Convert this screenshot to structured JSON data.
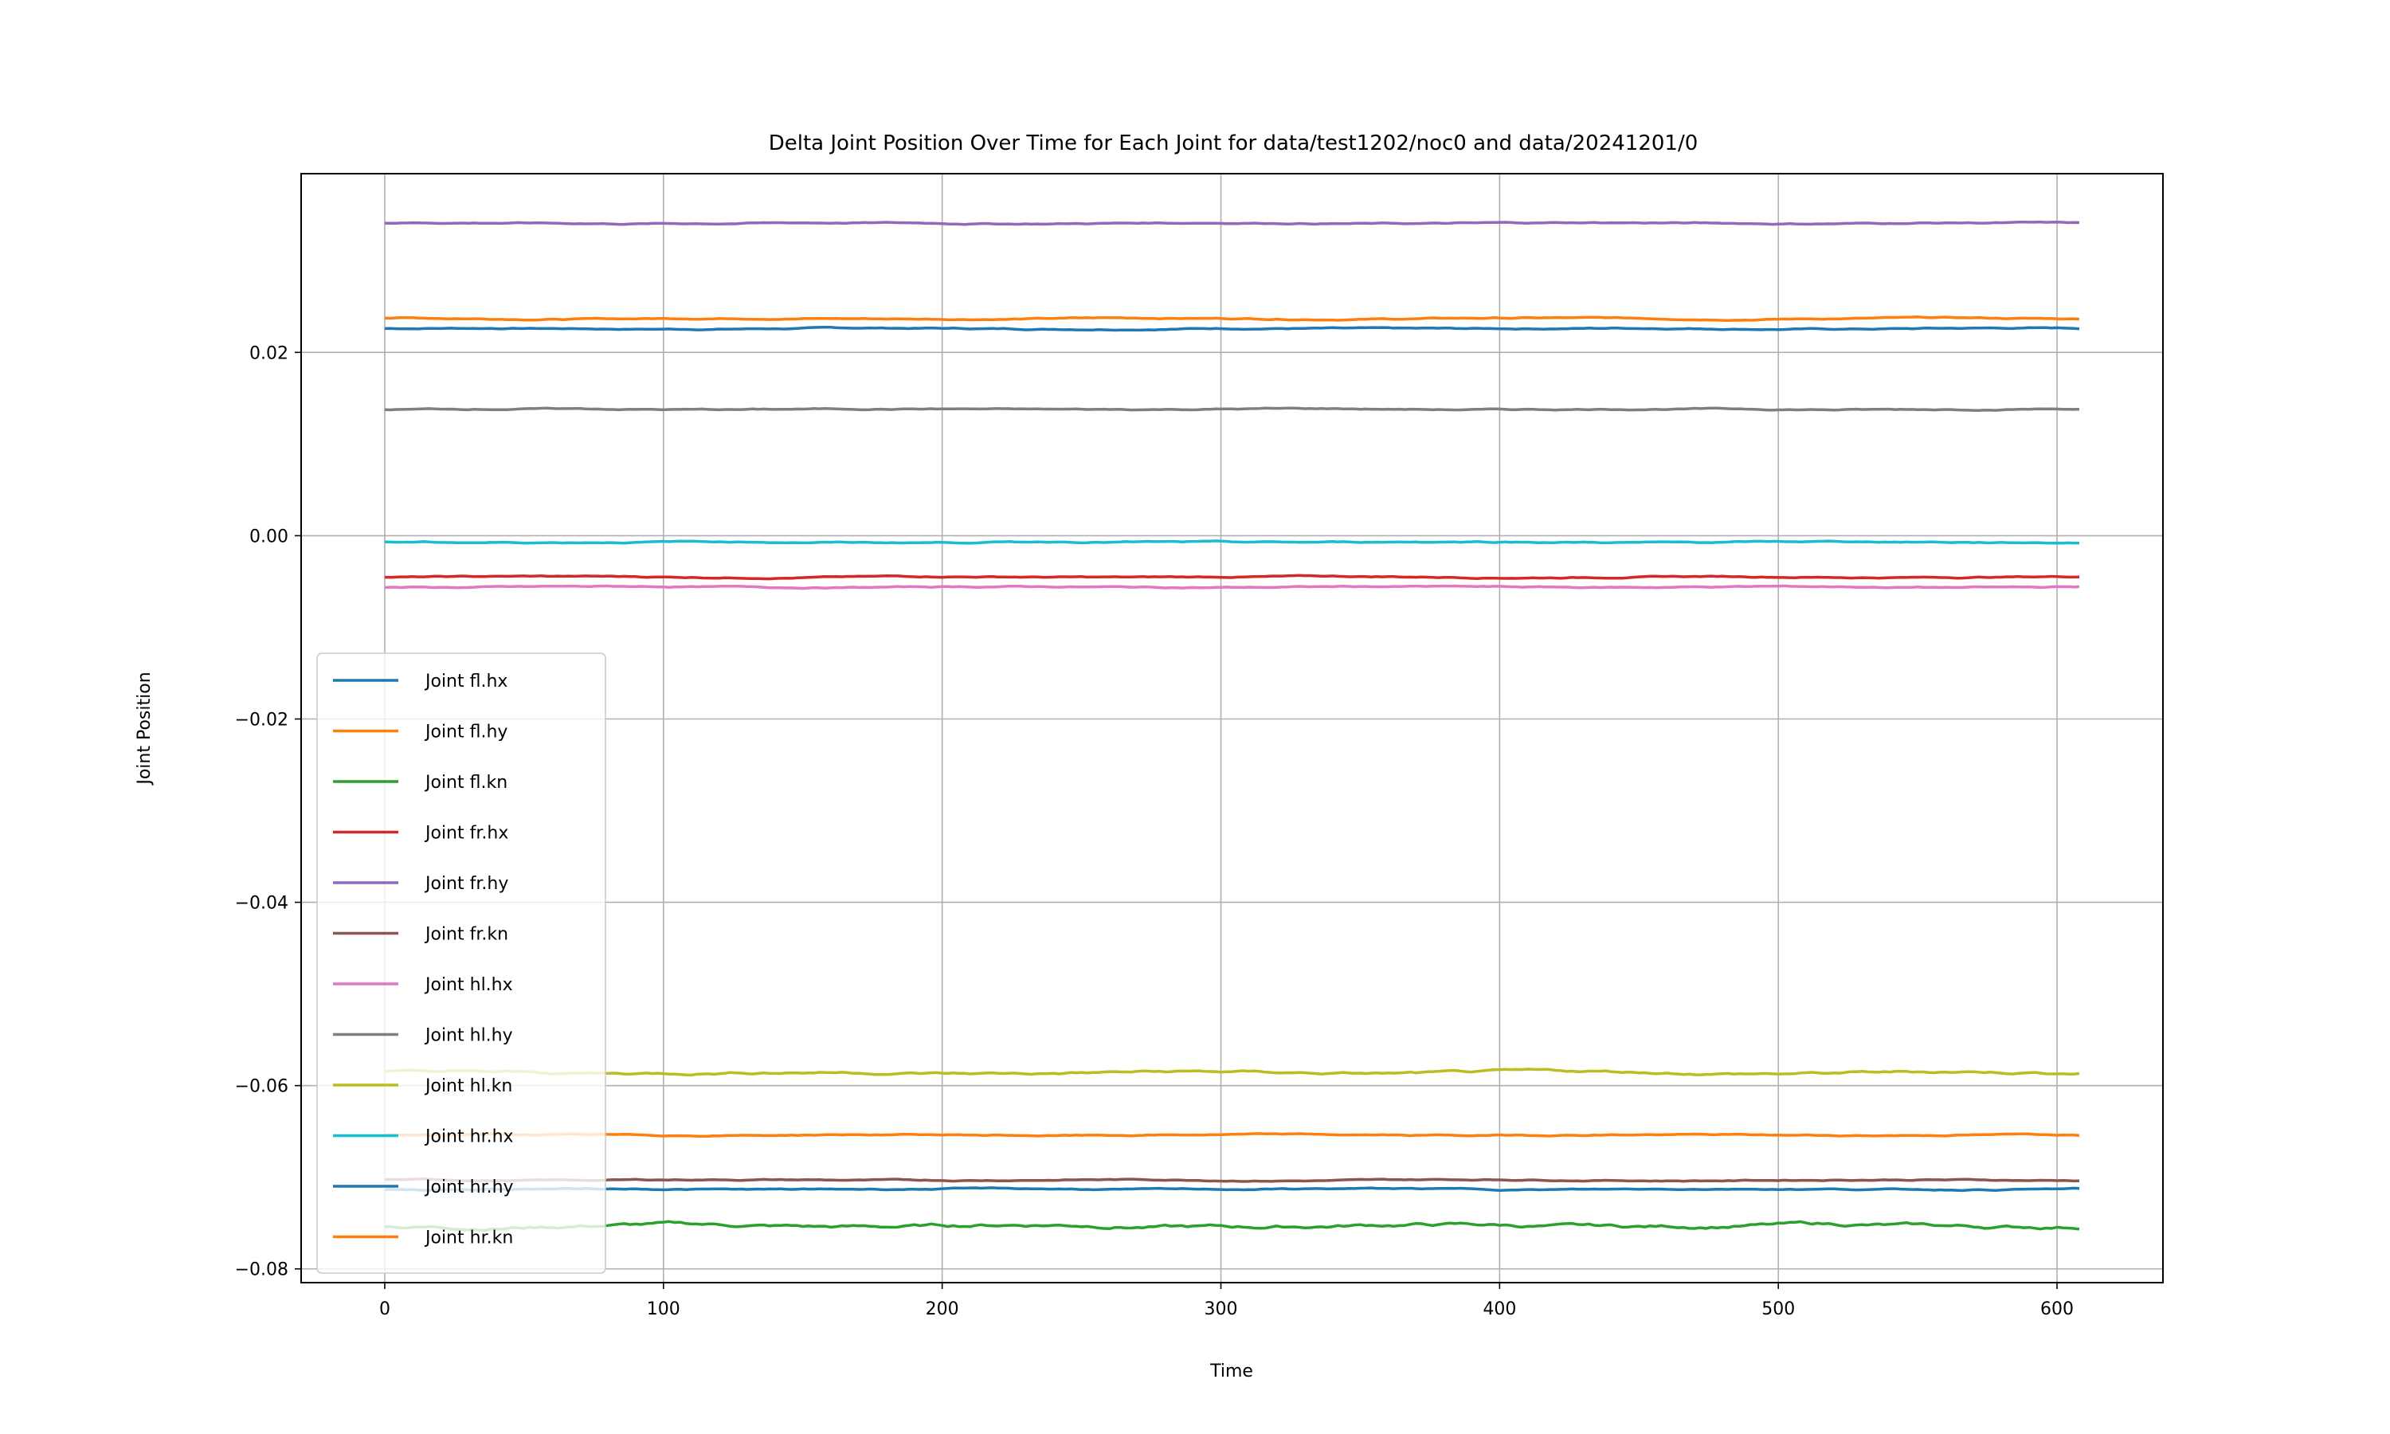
{
  "chart_data": {
    "type": "line",
    "title": "Delta Joint Position Over Time for Each Joint for data/test1202/noc0 and data/20241201/0",
    "xlabel": "Time",
    "ylabel": "Joint Position",
    "xlim": [
      -30,
      638
    ],
    "ylim": [
      -0.0815,
      0.0395
    ],
    "x_range": [
      0,
      608
    ],
    "xticks": [
      0,
      100,
      200,
      300,
      400,
      500,
      600
    ],
    "yticks": [
      -0.08,
      -0.06,
      -0.04,
      -0.02,
      0.0,
      0.02
    ],
    "xtick_labels": [
      "0",
      "100",
      "200",
      "300",
      "400",
      "500",
      "600"
    ],
    "ytick_labels": [
      "−0.08",
      "−0.06",
      "−0.04",
      "−0.02",
      "0.00",
      "0.02"
    ],
    "grid": true,
    "legend_position": "lower-left",
    "series": [
      {
        "name": "Joint fl.hx",
        "color": "#1f77b4",
        "value": 0.0226,
        "noise": 0.0001
      },
      {
        "name": "Joint fl.hy",
        "color": "#ff7f0e",
        "value": 0.0237,
        "noise": 0.0001
      },
      {
        "name": "Joint fl.kn",
        "color": "#2ca02c",
        "value": -0.0753,
        "noise": 0.0003
      },
      {
        "name": "Joint fr.hx",
        "color": "#d62728",
        "value": -0.0045,
        "noise": 0.0001
      },
      {
        "name": "Joint fr.hy",
        "color": "#9467bd",
        "value": 0.0341,
        "noise": 0.0001
      },
      {
        "name": "Joint fr.kn",
        "color": "#8c564b",
        "value": -0.0703,
        "noise": 0.0001
      },
      {
        "name": "Joint hl.hx",
        "color": "#e377c2",
        "value": -0.0056,
        "noise": 0.0001
      },
      {
        "name": "Joint hl.hy",
        "color": "#7f7f7f",
        "value": 0.0138,
        "noise": 0.0001
      },
      {
        "name": "Joint hl.kn",
        "color": "#bcbd22",
        "value": -0.0586,
        "noise": 0.0002
      },
      {
        "name": "Joint hr.hx",
        "color": "#17becf",
        "value": -0.0007,
        "noise": 0.0001
      },
      {
        "name": "Joint hr.hy",
        "color": "#1f77b4",
        "value": -0.0713,
        "noise": 0.0001
      },
      {
        "name": "Joint hr.kn",
        "color": "#ff7f0e",
        "value": -0.0654,
        "noise": 0.0001
      }
    ]
  }
}
